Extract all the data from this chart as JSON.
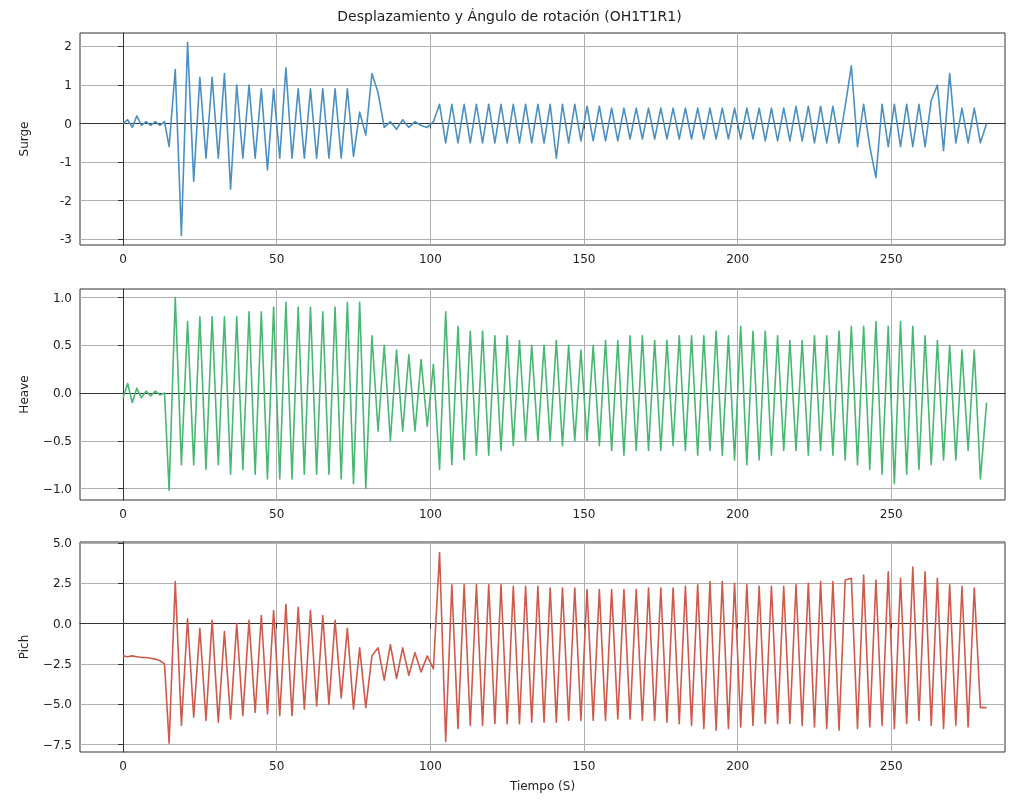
{
  "chart_data": [
    {
      "type": "line",
      "title": "Desplazamiento y Ángulo de rotación (OH1T1R1)",
      "ylabel": "Surge",
      "color": "#4a90c4",
      "xlim": [
        -14,
        287
      ],
      "xticks": [
        0,
        50,
        100,
        150,
        200,
        250
      ],
      "ylim": [
        -3.15,
        2.35
      ],
      "yticks": [
        -3,
        -2,
        -1,
        0,
        1,
        2
      ],
      "grid": true,
      "x": [
        0,
        1.5,
        3,
        4.5,
        6,
        7.5,
        9,
        10.5,
        12,
        13.5,
        15,
        17,
        19,
        21,
        23,
        25,
        27,
        29,
        31,
        33,
        35,
        37,
        39,
        41,
        43,
        45,
        47,
        49,
        51,
        53,
        55,
        57,
        59,
        61,
        63,
        65,
        67,
        69,
        71,
        73,
        75,
        77,
        79,
        81,
        83,
        85,
        87,
        89,
        91,
        93,
        95,
        97,
        99,
        101,
        103,
        105,
        107,
        109,
        111,
        113,
        115,
        117,
        119,
        121,
        123,
        125,
        127,
        129,
        131,
        133,
        135,
        137,
        139,
        141,
        143,
        145,
        147,
        149,
        151,
        153,
        155,
        157,
        159,
        161,
        163,
        165,
        167,
        169,
        171,
        173,
        175,
        177,
        179,
        181,
        183,
        185,
        187,
        189,
        191,
        193,
        195,
        197,
        199,
        201,
        203,
        205,
        207,
        209,
        211,
        213,
        215,
        217,
        219,
        221,
        223,
        225,
        227,
        229,
        231,
        233,
        235,
        237,
        239,
        241,
        243,
        245,
        247,
        249,
        251,
        253,
        255,
        257,
        259,
        261,
        263,
        265,
        267,
        269,
        271,
        273,
        275,
        277,
        279,
        281
      ],
      "values": [
        0,
        0.1,
        -0.1,
        0.2,
        -0.05,
        0.05,
        -0.05,
        0.05,
        -0.05,
        0.05,
        -0.6,
        1.4,
        -2.9,
        2.1,
        -1.5,
        1.2,
        -0.9,
        1.2,
        -0.9,
        1.3,
        -1.7,
        1.0,
        -0.9,
        1.0,
        -0.9,
        0.9,
        -1.2,
        0.9,
        -0.9,
        1.45,
        -0.9,
        0.9,
        -0.9,
        0.9,
        -0.9,
        0.9,
        -0.9,
        0.9,
        -0.9,
        0.9,
        -0.85,
        0.3,
        -0.3,
        1.3,
        0.8,
        -0.1,
        0.05,
        -0.15,
        0.1,
        -0.1,
        0.05,
        -0.05,
        -0.1,
        0.05,
        0.5,
        -0.5,
        0.5,
        -0.5,
        0.5,
        -0.5,
        0.5,
        -0.5,
        0.5,
        -0.5,
        0.5,
        -0.5,
        0.5,
        -0.5,
        0.5,
        -0.5,
        0.5,
        -0.5,
        0.5,
        -0.9,
        0.5,
        -0.5,
        0.5,
        -0.45,
        0.45,
        -0.45,
        0.45,
        -0.45,
        0.4,
        -0.45,
        0.4,
        -0.4,
        0.4,
        -0.4,
        0.4,
        -0.4,
        0.4,
        -0.4,
        0.4,
        -0.4,
        0.4,
        -0.4,
        0.4,
        -0.4,
        0.4,
        -0.4,
        0.4,
        -0.4,
        0.4,
        -0.4,
        0.4,
        -0.4,
        0.4,
        -0.45,
        0.4,
        -0.45,
        0.4,
        -0.45,
        0.45,
        -0.45,
        0.45,
        -0.5,
        0.45,
        -0.5,
        0.45,
        -0.5,
        0.45,
        1.5,
        -0.6,
        0.5,
        -0.6,
        -1.4,
        0.5,
        -0.6,
        0.5,
        -0.6,
        0.5,
        -0.6,
        0.5,
        -0.6,
        0.6,
        1.0,
        -0.7,
        1.3,
        -0.5,
        0.4,
        -0.5,
        0.4,
        -0.5,
        0
      ]
    },
    {
      "type": "line",
      "ylabel": "Heave",
      "color": "#47b872",
      "xlim": [
        -14,
        287
      ],
      "xticks": [
        0,
        50,
        100,
        150,
        200,
        250
      ],
      "ylim": [
        -1.12,
        1.09
      ],
      "yticks": [
        {
          "value": -1,
          "label": "−1.0"
        },
        {
          "value": -0.5,
          "label": "−0.5"
        },
        {
          "value": 0,
          "label": "0.0"
        },
        0.5,
        {
          "value": 1,
          "label": "1.0"
        }
      ],
      "grid": true,
      "x": [
        0,
        1.5,
        3,
        4.5,
        6,
        7.5,
        9,
        10.5,
        12,
        13.5,
        15,
        17,
        19,
        21,
        23,
        25,
        27,
        29,
        31,
        33,
        35,
        37,
        39,
        41,
        43,
        45,
        47,
        49,
        51,
        53,
        55,
        57,
        59,
        61,
        63,
        65,
        67,
        69,
        71,
        73,
        75,
        77,
        79,
        81,
        83,
        85,
        87,
        89,
        91,
        93,
        95,
        97,
        99,
        101,
        103,
        105,
        107,
        109,
        111,
        113,
        115,
        117,
        119,
        121,
        123,
        125,
        127,
        129,
        131,
        133,
        135,
        137,
        139,
        141,
        143,
        145,
        147,
        149,
        151,
        153,
        155,
        157,
        159,
        161,
        163,
        165,
        167,
        169,
        171,
        173,
        175,
        177,
        179,
        181,
        183,
        185,
        187,
        189,
        191,
        193,
        195,
        197,
        199,
        201,
        203,
        205,
        207,
        209,
        211,
        213,
        215,
        217,
        219,
        221,
        223,
        225,
        227,
        229,
        231,
        233,
        235,
        237,
        239,
        241,
        243,
        245,
        247,
        249,
        251,
        253,
        255,
        257,
        259,
        261,
        263,
        265,
        267,
        269,
        271,
        273,
        275,
        277,
        279,
        281
      ],
      "values": [
        -0.05,
        0.1,
        -0.1,
        0.05,
        -0.05,
        0.02,
        -0.03,
        0.02,
        -0.02,
        0,
        -1.02,
        1.0,
        -0.75,
        0.75,
        -0.75,
        0.8,
        -0.8,
        0.8,
        -0.75,
        0.8,
        -0.85,
        0.8,
        -0.8,
        0.85,
        -0.85,
        0.85,
        -0.9,
        0.9,
        -0.9,
        0.95,
        -0.9,
        0.9,
        -0.85,
        0.9,
        -0.85,
        0.85,
        -0.85,
        0.9,
        -0.9,
        0.95,
        -0.95,
        0.95,
        -1.0,
        0.6,
        -0.4,
        0.5,
        -0.5,
        0.45,
        -0.4,
        0.4,
        -0.4,
        0.35,
        -0.35,
        0.3,
        -0.8,
        0.85,
        -0.75,
        0.7,
        -0.7,
        0.65,
        -0.65,
        0.65,
        -0.65,
        0.6,
        -0.6,
        0.6,
        -0.55,
        0.55,
        -0.5,
        0.5,
        -0.5,
        0.5,
        -0.5,
        0.55,
        -0.55,
        0.5,
        -0.5,
        0.45,
        -0.5,
        0.5,
        -0.55,
        0.55,
        -0.6,
        0.55,
        -0.65,
        0.6,
        -0.6,
        0.6,
        -0.6,
        0.55,
        -0.6,
        0.55,
        -0.55,
        0.6,
        -0.6,
        0.6,
        -0.65,
        0.6,
        -0.6,
        0.65,
        -0.65,
        0.6,
        -0.7,
        0.7,
        -0.75,
        0.65,
        -0.7,
        0.65,
        -0.65,
        0.6,
        -0.6,
        0.55,
        -0.6,
        0.55,
        -0.65,
        0.6,
        -0.6,
        0.6,
        -0.65,
        0.65,
        -0.7,
        0.7,
        -0.75,
        0.7,
        -0.8,
        0.75,
        -0.85,
        0.7,
        -0.95,
        0.75,
        -0.85,
        0.7,
        -0.8,
        0.6,
        -0.75,
        0.55,
        -0.7,
        0.5,
        -0.7,
        0.45,
        -0.6,
        0.45,
        -0.9,
        -0.1
      ]
    },
    {
      "type": "line",
      "ylabel": "Pich",
      "xlabel": "Tiempo (S)",
      "color": "#cf5a4a",
      "xlim": [
        -14,
        287
      ],
      "xticks": [
        0,
        50,
        100,
        150,
        200,
        250
      ],
      "ylim": [
        -7.95,
        5.05
      ],
      "yticks": [
        {
          "value": -7.5,
          "label": "−7.5"
        },
        {
          "value": -5,
          "label": "−5.0"
        },
        {
          "value": -2.5,
          "label": "−2.5"
        },
        {
          "value": 0,
          "label": "0.0"
        },
        2.5,
        {
          "value": 5,
          "label": "5.0"
        }
      ],
      "grid": true,
      "x": [
        0,
        1.5,
        3,
        4.5,
        6,
        7.5,
        9,
        10.5,
        12,
        13.5,
        15,
        17,
        19,
        21,
        23,
        25,
        27,
        29,
        31,
        33,
        35,
        37,
        39,
        41,
        43,
        45,
        47,
        49,
        51,
        53,
        55,
        57,
        59,
        61,
        63,
        65,
        67,
        69,
        71,
        73,
        75,
        77,
        79,
        81,
        83,
        85,
        87,
        89,
        91,
        93,
        95,
        97,
        99,
        101,
        103,
        105,
        107,
        109,
        111,
        113,
        115,
        117,
        119,
        121,
        123,
        125,
        127,
        129,
        131,
        133,
        135,
        137,
        139,
        141,
        143,
        145,
        147,
        149,
        151,
        153,
        155,
        157,
        159,
        161,
        163,
        165,
        167,
        169,
        171,
        173,
        175,
        177,
        179,
        181,
        183,
        185,
        187,
        189,
        191,
        193,
        195,
        197,
        199,
        201,
        203,
        205,
        207,
        209,
        211,
        213,
        215,
        217,
        219,
        221,
        223,
        225,
        227,
        229,
        231,
        233,
        235,
        237,
        239,
        241,
        243,
        245,
        247,
        249,
        251,
        253,
        255,
        257,
        259,
        261,
        263,
        265,
        267,
        269,
        271,
        273,
        275,
        277,
        279,
        281
      ],
      "values": [
        -2,
        -2.05,
        -2,
        -2.05,
        -2.1,
        -2.1,
        -2.15,
        -2.2,
        -2.3,
        -2.5,
        -7.4,
        2.6,
        -6.3,
        0.3,
        -5.8,
        -0.3,
        -6,
        0.2,
        -6.1,
        -0.5,
        -5.9,
        0,
        -5.7,
        0.2,
        -5.5,
        0.5,
        -5.6,
        0.8,
        -5.7,
        1.2,
        -5.7,
        1,
        -5.3,
        0.8,
        -5.1,
        0.5,
        -5,
        0.2,
        -4.6,
        -0.3,
        -5.3,
        -1.5,
        -5.2,
        -2,
        -1.5,
        -3.5,
        -1.3,
        -3.4,
        -1.5,
        -3.2,
        -1.8,
        -3,
        -2,
        -2.8,
        4.4,
        -7.3,
        2.4,
        -6.5,
        2.4,
        -6.3,
        2.4,
        -6.3,
        2.4,
        -6.2,
        2.4,
        -6.2,
        2.3,
        -6.2,
        2.3,
        -6.1,
        2.3,
        -6.1,
        2.2,
        -6.1,
        2.2,
        -6,
        2.2,
        -6,
        2.1,
        -6,
        2.1,
        -6,
        2.1,
        -5.9,
        2.1,
        -5.9,
        2.1,
        -6,
        2.2,
        -6,
        2.2,
        -6.1,
        2.2,
        -6.2,
        2.3,
        -6.3,
        2.4,
        -6.5,
        2.6,
        -6.6,
        2.6,
        -6.5,
        2.5,
        -6.4,
        2.4,
        -6.3,
        2.3,
        -6.2,
        2.3,
        -6.2,
        2.3,
        -6.2,
        2.4,
        -6.3,
        2.5,
        -6.4,
        2.6,
        -6.5,
        2.6,
        -6.6,
        2.7,
        2.8,
        -6.5,
        3,
        -6.4,
        2.7,
        -6.3,
        3.2,
        -6.5,
        2.8,
        -6.2,
        3.5,
        -6,
        3.2,
        -6.3,
        2.8,
        -6.5,
        2.4,
        -6.3,
        2.3,
        -6.4,
        2.2,
        -5.2,
        -5.2
      ]
    }
  ]
}
